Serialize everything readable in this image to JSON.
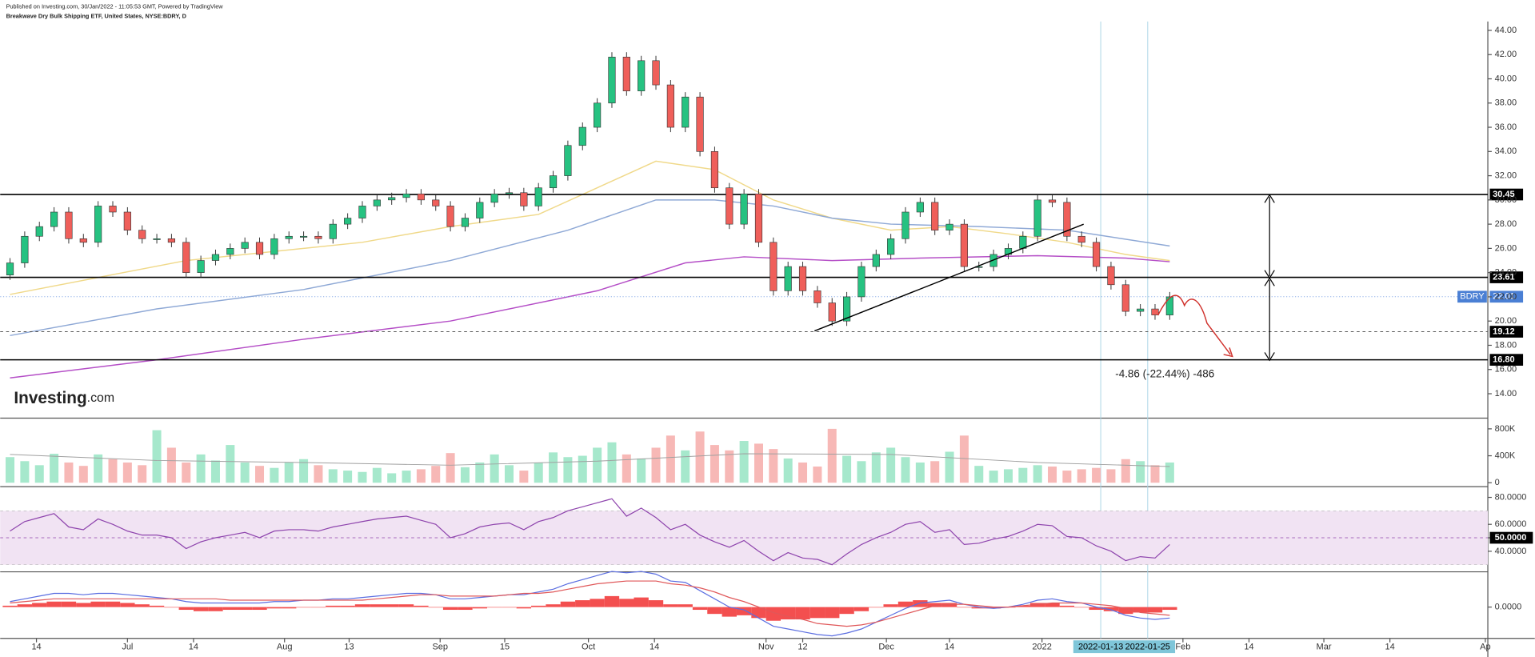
{
  "header": {
    "published": "Published on Investing.com, 30/Jan/2022 - 11:05:53 GMT, Powered by TradingView",
    "instrument": "Breakwave Dry Bulk Shipping ETF, United States, NYSE:BDRY, D",
    "logo_name": "Investing",
    "logo_suffix": ".com"
  },
  "chart_data": [
    {
      "type": "candlestick",
      "up_color": "#26c281",
      "down_color": "#ef5f5a",
      "xlim": [
        -0.67,
        100.67
      ],
      "xticks": [
        {
          "value": 1.8,
          "label": "14"
        },
        {
          "value": 8,
          "label": "Jul"
        },
        {
          "value": 12.5,
          "label": "14"
        },
        {
          "value": 18.7,
          "label": "Aug"
        },
        {
          "value": 23.1,
          "label": "13"
        },
        {
          "value": 29.3,
          "label": "Sep"
        },
        {
          "value": 33.7,
          "label": "15"
        },
        {
          "value": 39.4,
          "label": "Oct"
        },
        {
          "value": 43.9,
          "label": "14"
        },
        {
          "value": 51.5,
          "label": "Nov"
        },
        {
          "value": 54,
          "label": "12"
        },
        {
          "value": 59.7,
          "label": "Dec"
        },
        {
          "value": 64,
          "label": "14"
        },
        {
          "value": 70.3,
          "label": "2022"
        },
        {
          "value": 79.9,
          "label": "Feb"
        },
        {
          "value": 84.4,
          "label": "14"
        },
        {
          "value": 89.5,
          "label": "Mar"
        },
        {
          "value": 94,
          "label": "14"
        },
        {
          "value": 100.5,
          "label": "Ap"
        }
      ],
      "ylim": [
        12.15,
        44.73
      ],
      "yticks": [
        {
          "value": 14,
          "label": "14.00"
        },
        {
          "value": 16,
          "label": "16.00"
        },
        {
          "value": 18,
          "label": "18.00"
        },
        {
          "value": 20,
          "label": "20.00"
        },
        {
          "value": 22,
          "label": "22.00"
        },
        {
          "value": 24,
          "label": "24.00"
        },
        {
          "value": 26,
          "label": "26.00"
        },
        {
          "value": 28,
          "label": "28.00"
        },
        {
          "value": 30,
          "label": "30.00"
        },
        {
          "value": 32,
          "label": "32.00"
        },
        {
          "value": 34,
          "label": "34.00"
        },
        {
          "value": 36,
          "label": "36.00"
        },
        {
          "value": 38,
          "label": "38.00"
        },
        {
          "value": 40,
          "label": "40.00"
        },
        {
          "value": 42,
          "label": "42.00"
        },
        {
          "value": 44,
          "label": "44.00"
        }
      ],
      "open": [
        23.8,
        24.8,
        27.0,
        27.8,
        29.0,
        26.8,
        26.5,
        29.5,
        29.0,
        27.5,
        26.8,
        26.8,
        26.5,
        24.0,
        25.0,
        25.5,
        26.0,
        26.5,
        25.5,
        26.8,
        27.0,
        27.0,
        26.8,
        28.0,
        28.5,
        29.5,
        30.0,
        30.2,
        30.5,
        30.0,
        29.5,
        27.8,
        28.5,
        29.8,
        30.5,
        30.6,
        29.5,
        31.0,
        32.0,
        34.5,
        36.0,
        38.0,
        41.8,
        39.0,
        41.5,
        39.5,
        36.0,
        38.5,
        34.0,
        31.0,
        28.0,
        30.5,
        26.5,
        22.5,
        24.5,
        22.5,
        21.5,
        20.0,
        22.0,
        24.5,
        25.5,
        26.8,
        29.0,
        29.8,
        27.5,
        28.0,
        24.5,
        24.5,
        25.5,
        26.0,
        27.0,
        30.0,
        29.8,
        27.0,
        26.5,
        24.5,
        23.0,
        20.8,
        21.0,
        20.5
      ],
      "high": [
        25.2,
        27.4,
        28.2,
        29.4,
        29.4,
        27.2,
        29.9,
        29.9,
        29.4,
        27.9,
        27.2,
        27.2,
        26.9,
        25.4,
        25.9,
        26.4,
        26.9,
        26.9,
        27.2,
        27.4,
        27.4,
        27.4,
        28.4,
        28.9,
        29.9,
        30.4,
        30.6,
        30.9,
        30.9,
        30.4,
        29.9,
        28.9,
        30.2,
        30.9,
        31.0,
        31.0,
        31.4,
        32.4,
        34.9,
        36.4,
        38.4,
        42.2,
        42.2,
        41.9,
        41.9,
        39.9,
        38.9,
        38.9,
        34.4,
        31.4,
        30.9,
        30.9,
        26.9,
        24.9,
        24.9,
        22.9,
        21.9,
        22.4,
        24.9,
        25.9,
        27.2,
        29.4,
        30.2,
        30.2,
        28.4,
        28.4,
        24.9,
        25.9,
        26.4,
        27.4,
        30.4,
        30.4,
        30.2,
        27.4,
        26.9,
        24.9,
        23.4,
        21.4,
        21.4,
        22.4
      ],
      "low": [
        23.4,
        24.4,
        26.6,
        27.4,
        26.4,
        26.1,
        26.1,
        28.6,
        27.1,
        26.4,
        26.4,
        26.1,
        23.6,
        23.6,
        24.6,
        25.1,
        25.6,
        25.1,
        25.1,
        26.4,
        26.6,
        26.4,
        26.4,
        27.6,
        28.1,
        29.1,
        29.6,
        29.8,
        29.6,
        29.1,
        27.4,
        27.4,
        28.1,
        29.4,
        30.1,
        29.1,
        29.1,
        30.6,
        31.6,
        34.1,
        35.6,
        37.6,
        38.6,
        38.6,
        39.1,
        35.6,
        35.6,
        33.6,
        30.6,
        27.6,
        27.6,
        26.1,
        22.1,
        22.1,
        22.1,
        21.1,
        19.6,
        19.6,
        21.6,
        24.1,
        25.1,
        26.4,
        28.6,
        27.1,
        27.1,
        24.1,
        24.1,
        24.1,
        25.1,
        25.6,
        26.6,
        29.4,
        26.6,
        26.1,
        24.1,
        22.6,
        20.4,
        20.4,
        20.1,
        20.1
      ],
      "close": [
        24.8,
        27.0,
        27.8,
        29.0,
        26.8,
        26.5,
        29.5,
        29.0,
        27.5,
        26.8,
        26.8,
        26.5,
        24.0,
        25.0,
        25.5,
        26.0,
        26.5,
        25.5,
        26.8,
        27.0,
        27.0,
        26.8,
        28.0,
        28.5,
        29.5,
        30.0,
        30.2,
        30.5,
        30.0,
        29.5,
        27.8,
        28.5,
        29.8,
        30.5,
        30.6,
        29.5,
        31.0,
        32.0,
        34.5,
        36.0,
        38.0,
        41.8,
        39.0,
        41.5,
        39.5,
        36.0,
        38.5,
        34.0,
        31.0,
        28.0,
        30.5,
        26.5,
        22.5,
        24.5,
        22.5,
        21.5,
        20.0,
        22.0,
        24.5,
        25.5,
        26.8,
        29.0,
        29.8,
        27.5,
        28.0,
        24.5,
        24.5,
        25.5,
        26.0,
        27.0,
        30.0,
        29.8,
        27.0,
        26.5,
        24.5,
        23.0,
        20.8,
        21.0,
        20.5,
        22.0
      ],
      "series": [
        {
          "color": "#f0d98a",
          "x": [
            0,
            12,
            24,
            30,
            36,
            40,
            44,
            48,
            52,
            56,
            60,
            64,
            68,
            72,
            76,
            79
          ],
          "values": [
            22.2,
            25.0,
            26.5,
            27.8,
            28.8,
            31.0,
            33.2,
            32.5,
            30.0,
            28.5,
            27.5,
            27.8,
            27.2,
            26.5,
            25.5,
            25.0
          ]
        },
        {
          "color": "#8fa9d6",
          "x": [
            0,
            10,
            20,
            30,
            38,
            44,
            48,
            52,
            56,
            60,
            66,
            72,
            79
          ],
          "values": [
            18.8,
            21.0,
            22.6,
            25.0,
            27.5,
            30.0,
            30.0,
            29.5,
            28.5,
            28.0,
            27.8,
            27.5,
            26.2
          ]
        },
        {
          "color": "#b54fc7",
          "x": [
            0,
            10,
            20,
            30,
            40,
            46,
            50,
            56,
            62,
            70,
            76,
            79
          ],
          "values": [
            15.3,
            16.8,
            18.5,
            20.0,
            22.5,
            24.8,
            25.3,
            25.0,
            25.2,
            25.4,
            25.2,
            24.9
          ]
        }
      ],
      "levels": [
        30.45,
        23.61,
        {
          "value": 16.8,
          "label": "16.80"
        }
      ],
      "dashed_level": 19.12,
      "last_price": {
        "name": "BDRY",
        "value": 22.01
      },
      "measure": "-4.86 (-22.44%) -486",
      "markers": [
        {
          "x": 74.3,
          "label": "2022-01-13"
        },
        {
          "x": 77.5,
          "label": "2022-01-25"
        }
      ]
    },
    {
      "type": "bar",
      "up_color": "#a6e8cc",
      "down_color": "#f7b8b6",
      "ylim": [
        0,
        916000
      ],
      "yticks": [
        0,
        {
          "value": 400000,
          "label": "400K"
        },
        {
          "value": 800000,
          "label": "800K"
        }
      ],
      "values": [
        380000,
        320000,
        260000,
        430000,
        300000,
        250000,
        420000,
        350000,
        300000,
        260000,
        780000,
        520000,
        300000,
        420000,
        330000,
        560000,
        300000,
        250000,
        220000,
        300000,
        350000,
        260000,
        200000,
        180000,
        160000,
        220000,
        140000,
        180000,
        200000,
        250000,
        440000,
        230000,
        300000,
        420000,
        260000,
        180000,
        300000,
        450000,
        380000,
        400000,
        520000,
        600000,
        420000,
        360000,
        520000,
        700000,
        480000,
        760000,
        560000,
        480000,
        620000,
        580000,
        500000,
        360000,
        300000,
        240000,
        800000,
        400000,
        320000,
        450000,
        520000,
        380000,
        300000,
        320000,
        460000,
        700000,
        250000,
        180000,
        200000,
        220000,
        260000,
        240000,
        180000,
        200000,
        220000,
        200000,
        350000,
        320000,
        260000,
        300000
      ],
      "series": [
        {
          "color": "#a0a0a0",
          "x": [
            0,
            10,
            20,
            30,
            40,
            50,
            60,
            70,
            79
          ],
          "values": [
            420000,
            330000,
            300000,
            260000,
            320000,
            430000,
            420000,
            300000,
            240000
          ]
        }
      ]
    },
    {
      "type": "line",
      "color": "#8e44ad",
      "band": [
        30,
        70
      ],
      "band_color": "#f1e3f3",
      "midline": 50,
      "ylim": [
        29.1,
        85.8
      ],
      "yticks": [
        {
          "value": 80,
          "label": "80.0000"
        },
        {
          "value": 60,
          "label": "60.0000"
        },
        {
          "value": 50,
          "label": "50.0000"
        },
        {
          "value": 40,
          "label": "40.0000"
        }
      ],
      "values": [
        55,
        62,
        65,
        68,
        58,
        56,
        64,
        60,
        55,
        52,
        52,
        50,
        42,
        47,
        50,
        52,
        54,
        50,
        55,
        56,
        56,
        55,
        58,
        60,
        62,
        64,
        65,
        66,
        63,
        60,
        50,
        53,
        58,
        60,
        61,
        56,
        62,
        65,
        70,
        73,
        76,
        79,
        66,
        72,
        65,
        56,
        60,
        52,
        47,
        43,
        48,
        40,
        33,
        39,
        35,
        34,
        30,
        38,
        45,
        50,
        54,
        60,
        62,
        54,
        56,
        45,
        46,
        49,
        51,
        55,
        60,
        59,
        51,
        50,
        44,
        40,
        33,
        36,
        35,
        45
      ]
    },
    {
      "type": "macd",
      "hist_color": "#f23c3c",
      "ylim": [
        -2.5,
        2.5
      ],
      "yticks": [
        {
          "value": 0,
          "label": "0.0000"
        }
      ],
      "histogram": [
        0.1,
        0.2,
        0.3,
        0.4,
        0.4,
        0.3,
        0.4,
        0.4,
        0.3,
        0.2,
        0.1,
        0.0,
        -0.2,
        -0.3,
        -0.3,
        -0.2,
        -0.2,
        -0.2,
        -0.1,
        -0.1,
        0.0,
        0.0,
        0.1,
        0.1,
        0.2,
        0.2,
        0.2,
        0.2,
        0.1,
        0.0,
        -0.2,
        -0.2,
        -0.1,
        0.0,
        0.0,
        -0.1,
        0.1,
        0.2,
        0.4,
        0.5,
        0.6,
        0.8,
        0.6,
        0.7,
        0.5,
        0.2,
        0.2,
        -0.2,
        -0.5,
        -0.7,
        -0.6,
        -0.8,
        -1.0,
        -0.9,
        -0.9,
        -0.8,
        -0.8,
        -0.5,
        -0.3,
        0.0,
        0.2,
        0.4,
        0.5,
        0.3,
        0.3,
        0.0,
        -0.1,
        -0.1,
        0.0,
        0.1,
        0.3,
        0.3,
        0.1,
        0.0,
        -0.2,
        -0.3,
        -0.5,
        -0.4,
        -0.4,
        -0.2
      ],
      "series": [
        {
          "color": "#5b6ee1",
          "values": [
            0.4,
            0.6,
            0.8,
            1.0,
            1.0,
            0.9,
            1.0,
            1.0,
            0.9,
            0.8,
            0.7,
            0.6,
            0.4,
            0.3,
            0.3,
            0.3,
            0.3,
            0.3,
            0.4,
            0.4,
            0.5,
            0.5,
            0.6,
            0.6,
            0.7,
            0.8,
            0.9,
            1.0,
            1.0,
            0.9,
            0.6,
            0.6,
            0.7,
            0.8,
            0.9,
            0.9,
            1.1,
            1.3,
            1.7,
            2.0,
            2.3,
            2.6,
            2.5,
            2.6,
            2.4,
            1.9,
            1.8,
            1.2,
            0.6,
            0.0,
            -0.2,
            -0.8,
            -1.4,
            -1.6,
            -1.8,
            -2.0,
            -2.1,
            -1.9,
            -1.6,
            -1.1,
            -0.6,
            -0.1,
            0.3,
            0.4,
            0.5,
            0.2,
            0.0,
            -0.1,
            0.0,
            0.2,
            0.5,
            0.6,
            0.4,
            0.3,
            0.0,
            -0.2,
            -0.6,
            -0.8,
            -0.9,
            -0.8
          ]
        },
        {
          "color": "#e0585a",
          "values": [
            0.3,
            0.4,
            0.5,
            0.6,
            0.6,
            0.6,
            0.6,
            0.6,
            0.6,
            0.6,
            0.6,
            0.6,
            0.6,
            0.6,
            0.6,
            0.5,
            0.5,
            0.5,
            0.5,
            0.5,
            0.5,
            0.5,
            0.5,
            0.5,
            0.5,
            0.6,
            0.7,
            0.8,
            0.9,
            0.9,
            0.8,
            0.8,
            0.8,
            0.8,
            0.9,
            1.0,
            1.0,
            1.1,
            1.3,
            1.5,
            1.7,
            1.8,
            1.9,
            1.9,
            1.9,
            1.7,
            1.6,
            1.4,
            1.1,
            0.7,
            0.4,
            0.0,
            -0.4,
            -0.7,
            -0.9,
            -1.2,
            -1.3,
            -1.4,
            -1.3,
            -1.1,
            -0.8,
            -0.5,
            -0.2,
            0.1,
            0.2,
            0.2,
            0.1,
            0.0,
            0.0,
            0.1,
            0.2,
            0.3,
            0.3,
            0.3,
            0.2,
            0.1,
            -0.1,
            -0.4,
            -0.5,
            -0.6
          ]
        }
      ]
    }
  ]
}
